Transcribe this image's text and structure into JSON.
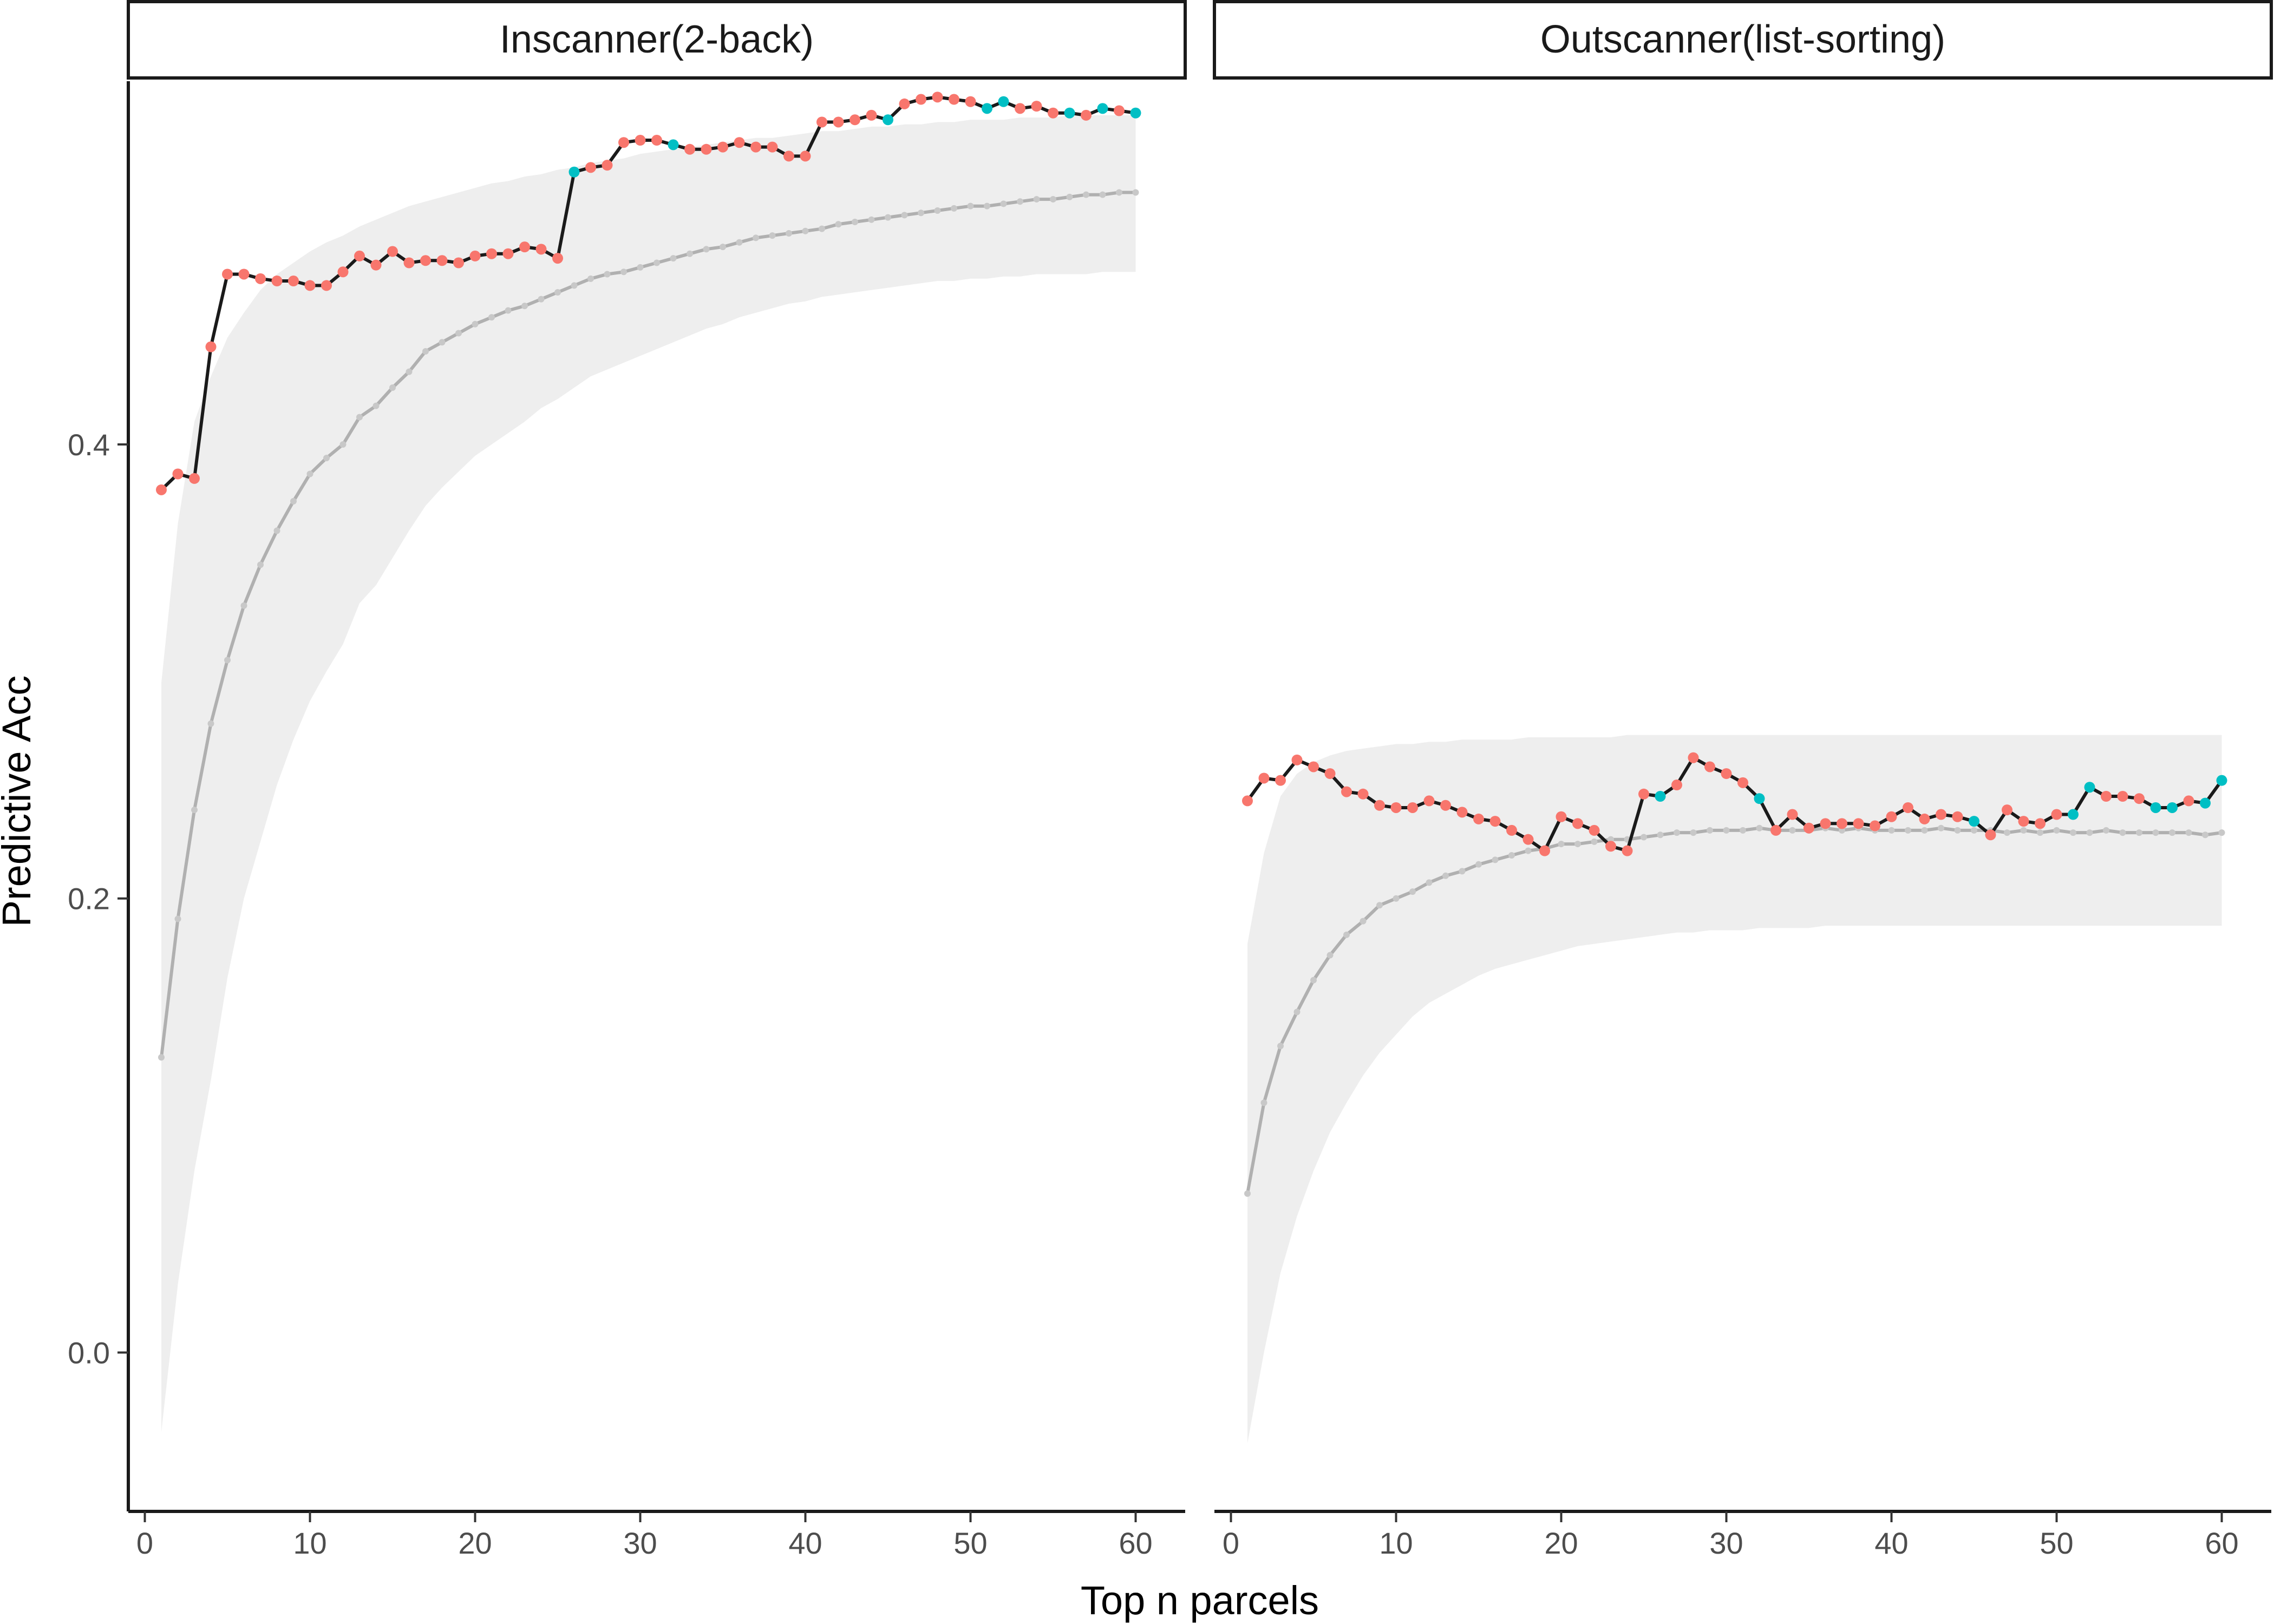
{
  "chart_data": {
    "type": "line",
    "xlabel": "Top n parcels",
    "ylabel": "Predictive Acc",
    "xlim": [
      -1,
      63
    ],
    "ylim": [
      -0.07,
      0.56
    ],
    "xticks": [
      0,
      10,
      20,
      30,
      40,
      50,
      60
    ],
    "yticks": [
      0.0,
      0.2,
      0.4
    ],
    "ytick_labels": [
      "0.0",
      "0.2",
      "0.4"
    ],
    "grid": false,
    "legend": "none",
    "colors": {
      "observed_line": "#1a1a1a",
      "point_red": "#F8766D",
      "point_teal": "#00BFC4",
      "null_line": "#b0b0b0",
      "null_band": "#ebebeb"
    },
    "panels": [
      {
        "title": "Inscanner(2-back)",
        "x": [
          1,
          2,
          3,
          4,
          5,
          6,
          7,
          8,
          9,
          10,
          11,
          12,
          13,
          14,
          15,
          16,
          17,
          18,
          19,
          20,
          21,
          22,
          23,
          24,
          25,
          26,
          27,
          28,
          29,
          30,
          31,
          32,
          33,
          34,
          35,
          36,
          37,
          38,
          39,
          40,
          41,
          42,
          43,
          44,
          45,
          46,
          47,
          48,
          49,
          50,
          51,
          52,
          53,
          54,
          55,
          56,
          57,
          58,
          59,
          60
        ],
        "observed": [
          0.38,
          0.387,
          0.385,
          0.443,
          0.475,
          0.475,
          0.473,
          0.472,
          0.472,
          0.47,
          0.47,
          0.476,
          0.483,
          0.479,
          0.485,
          0.48,
          0.481,
          0.481,
          0.48,
          0.483,
          0.484,
          0.484,
          0.487,
          0.486,
          0.482,
          0.52,
          0.522,
          0.523,
          0.533,
          0.534,
          0.534,
          0.532,
          0.53,
          0.53,
          0.531,
          0.533,
          0.531,
          0.531,
          0.527,
          0.527,
          0.542,
          0.542,
          0.543,
          0.545,
          0.543,
          0.55,
          0.552,
          0.553,
          0.552,
          0.551,
          0.548,
          0.551,
          0.548,
          0.549,
          0.546,
          0.546,
          0.545,
          0.548,
          0.547,
          0.546
        ],
        "point_group": [
          "red",
          "red",
          "red",
          "red",
          "red",
          "red",
          "red",
          "red",
          "red",
          "red",
          "red",
          "red",
          "red",
          "red",
          "red",
          "red",
          "red",
          "red",
          "red",
          "red",
          "red",
          "red",
          "red",
          "red",
          "red",
          "teal",
          "red",
          "red",
          "red",
          "red",
          "red",
          "teal",
          "red",
          "red",
          "red",
          "red",
          "red",
          "red",
          "red",
          "red",
          "red",
          "red",
          "red",
          "red",
          "teal",
          "red",
          "red",
          "red",
          "red",
          "red",
          "teal",
          "teal",
          "red",
          "red",
          "red",
          "teal",
          "red",
          "teal",
          "red",
          "teal"
        ],
        "null_mean": [
          0.13,
          0.191,
          0.239,
          0.277,
          0.305,
          0.329,
          0.347,
          0.362,
          0.375,
          0.387,
          0.394,
          0.4,
          0.412,
          0.417,
          0.425,
          0.432,
          0.441,
          0.445,
          0.449,
          0.453,
          0.456,
          0.459,
          0.461,
          0.464,
          0.467,
          0.47,
          0.473,
          0.475,
          0.476,
          0.478,
          0.48,
          0.482,
          0.484,
          0.486,
          0.487,
          0.489,
          0.491,
          0.492,
          0.493,
          0.494,
          0.495,
          0.497,
          0.498,
          0.499,
          0.5,
          0.501,
          0.502,
          0.503,
          0.504,
          0.505,
          0.505,
          0.506,
          0.507,
          0.508,
          0.508,
          0.509,
          0.51,
          0.51,
          0.511,
          0.511
        ],
        "band_lower": [
          -0.035,
          0.03,
          0.08,
          0.12,
          0.165,
          0.2,
          0.225,
          0.25,
          0.27,
          0.287,
          0.3,
          0.312,
          0.33,
          0.338,
          0.35,
          0.362,
          0.373,
          0.381,
          0.388,
          0.395,
          0.4,
          0.405,
          0.41,
          0.416,
          0.42,
          0.425,
          0.43,
          0.433,
          0.436,
          0.439,
          0.442,
          0.445,
          0.448,
          0.451,
          0.453,
          0.456,
          0.458,
          0.46,
          0.462,
          0.463,
          0.465,
          0.466,
          0.467,
          0.468,
          0.469,
          0.47,
          0.471,
          0.472,
          0.472,
          0.473,
          0.473,
          0.474,
          0.474,
          0.475,
          0.475,
          0.475,
          0.475,
          0.476,
          0.476,
          0.476
        ],
        "band_upper": [
          0.295,
          0.365,
          0.41,
          0.43,
          0.447,
          0.458,
          0.468,
          0.475,
          0.48,
          0.485,
          0.489,
          0.492,
          0.496,
          0.499,
          0.502,
          0.505,
          0.507,
          0.509,
          0.511,
          0.513,
          0.515,
          0.516,
          0.518,
          0.519,
          0.521,
          0.522,
          0.524,
          0.525,
          0.526,
          0.528,
          0.529,
          0.53,
          0.531,
          0.532,
          0.533,
          0.534,
          0.535,
          0.535,
          0.536,
          0.537,
          0.538,
          0.538,
          0.539,
          0.54,
          0.54,
          0.541,
          0.541,
          0.542,
          0.542,
          0.543,
          0.543,
          0.543,
          0.544,
          0.544,
          0.544,
          0.545,
          0.545,
          0.545,
          0.545,
          0.545
        ]
      },
      {
        "title": "Outscanner(list-sorting)",
        "x": [
          1,
          2,
          3,
          4,
          5,
          6,
          7,
          8,
          9,
          10,
          11,
          12,
          13,
          14,
          15,
          16,
          17,
          18,
          19,
          20,
          21,
          22,
          23,
          24,
          25,
          26,
          27,
          28,
          29,
          30,
          31,
          32,
          33,
          34,
          35,
          36,
          37,
          38,
          39,
          40,
          41,
          42,
          43,
          44,
          45,
          46,
          47,
          48,
          49,
          50,
          51,
          52,
          53,
          54,
          55,
          56,
          57,
          58,
          59,
          60
        ],
        "observed": [
          0.243,
          0.253,
          0.252,
          0.261,
          0.258,
          0.255,
          0.247,
          0.246,
          0.241,
          0.24,
          0.24,
          0.243,
          0.241,
          0.238,
          0.235,
          0.234,
          0.23,
          0.226,
          0.221,
          0.236,
          0.233,
          0.23,
          0.223,
          0.221,
          0.246,
          0.245,
          0.25,
          0.262,
          0.258,
          0.255,
          0.251,
          0.244,
          0.23,
          0.237,
          0.231,
          0.233,
          0.233,
          0.233,
          0.232,
          0.236,
          0.24,
          0.235,
          0.237,
          0.236,
          0.234,
          0.228,
          0.239,
          0.234,
          0.233,
          0.237,
          0.237,
          0.249,
          0.245,
          0.245,
          0.244,
          0.24,
          0.24,
          0.243,
          0.242,
          0.252
        ],
        "point_group": [
          "red",
          "red",
          "red",
          "red",
          "red",
          "red",
          "red",
          "red",
          "red",
          "red",
          "red",
          "red",
          "red",
          "red",
          "red",
          "red",
          "red",
          "red",
          "red",
          "red",
          "red",
          "red",
          "red",
          "red",
          "red",
          "teal",
          "red",
          "red",
          "red",
          "red",
          "red",
          "teal",
          "red",
          "red",
          "red",
          "red",
          "red",
          "red",
          "red",
          "red",
          "red",
          "red",
          "red",
          "red",
          "teal",
          "red",
          "red",
          "red",
          "red",
          "red",
          "teal",
          "teal",
          "red",
          "red",
          "red",
          "teal",
          "teal",
          "red",
          "teal",
          "teal"
        ],
        "null_mean": [
          0.07,
          0.11,
          0.135,
          0.15,
          0.164,
          0.175,
          0.184,
          0.19,
          0.197,
          0.2,
          0.203,
          0.207,
          0.21,
          0.212,
          0.215,
          0.217,
          0.219,
          0.221,
          0.222,
          0.224,
          0.224,
          0.225,
          0.226,
          0.226,
          0.227,
          0.228,
          0.229,
          0.229,
          0.23,
          0.23,
          0.23,
          0.231,
          0.23,
          0.23,
          0.23,
          0.231,
          0.23,
          0.231,
          0.23,
          0.23,
          0.23,
          0.23,
          0.231,
          0.23,
          0.23,
          0.23,
          0.229,
          0.23,
          0.229,
          0.23,
          0.229,
          0.229,
          0.23,
          0.229,
          0.229,
          0.229,
          0.229,
          0.229,
          0.228,
          0.229
        ],
        "band_lower": [
          -0.04,
          0.0,
          0.035,
          0.06,
          0.08,
          0.097,
          0.11,
          0.122,
          0.132,
          0.14,
          0.148,
          0.154,
          0.158,
          0.162,
          0.166,
          0.169,
          0.171,
          0.173,
          0.175,
          0.177,
          0.179,
          0.18,
          0.181,
          0.182,
          0.183,
          0.184,
          0.185,
          0.185,
          0.186,
          0.186,
          0.186,
          0.187,
          0.187,
          0.187,
          0.187,
          0.188,
          0.188,
          0.188,
          0.188,
          0.188,
          0.188,
          0.188,
          0.188,
          0.188,
          0.188,
          0.188,
          0.188,
          0.188,
          0.188,
          0.188,
          0.188,
          0.188,
          0.188,
          0.188,
          0.188,
          0.188,
          0.188,
          0.188,
          0.188,
          0.188
        ],
        "band_upper": [
          0.18,
          0.22,
          0.245,
          0.255,
          0.26,
          0.263,
          0.265,
          0.266,
          0.267,
          0.268,
          0.268,
          0.269,
          0.269,
          0.27,
          0.27,
          0.27,
          0.27,
          0.271,
          0.271,
          0.271,
          0.271,
          0.271,
          0.271,
          0.272,
          0.272,
          0.272,
          0.272,
          0.272,
          0.272,
          0.272,
          0.272,
          0.272,
          0.272,
          0.272,
          0.272,
          0.272,
          0.272,
          0.272,
          0.272,
          0.272,
          0.272,
          0.272,
          0.272,
          0.272,
          0.272,
          0.272,
          0.272,
          0.272,
          0.272,
          0.272,
          0.272,
          0.272,
          0.272,
          0.272,
          0.272,
          0.272,
          0.272,
          0.272,
          0.272,
          0.272
        ]
      }
    ]
  }
}
